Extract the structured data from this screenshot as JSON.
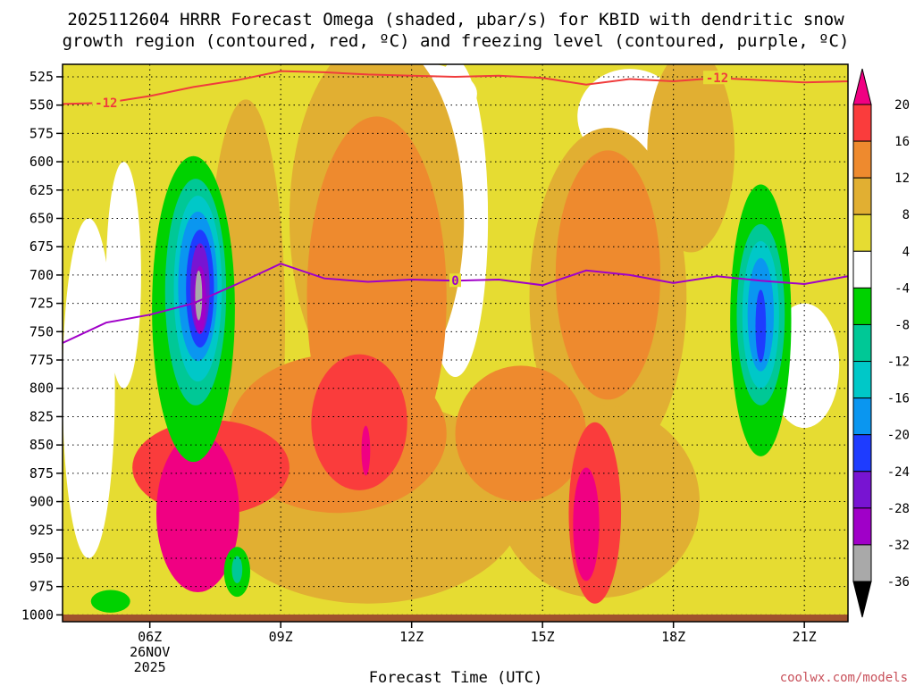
{
  "chart_data": {
    "type": "heatmap",
    "title_line1": "2025112604 HRRR Forecast Omega (shaded, μbar/s) for KBID with dendritic snow",
    "title_line2": "growth region (contoured, red, ºC) and freezing level (contoured, purple, ºC)",
    "xlabel": "Forecast Time (UTC)",
    "x_ticks": [
      {
        "hour": 6,
        "label": "06Z",
        "sub1": "26NOV",
        "sub2": "2025"
      },
      {
        "hour": 9,
        "label": "09Z"
      },
      {
        "hour": 12,
        "label": "12Z"
      },
      {
        "hour": 15,
        "label": "15Z"
      },
      {
        "hour": 18,
        "label": "18Z"
      },
      {
        "hour": 21,
        "label": "21Z"
      }
    ],
    "x_range_hours": [
      4,
      22
    ],
    "y_ticks": [
      525,
      550,
      575,
      600,
      625,
      650,
      675,
      700,
      725,
      750,
      775,
      800,
      825,
      850,
      875,
      900,
      925,
      950,
      975,
      1000
    ],
    "y_range_hpa": [
      514,
      1006
    ],
    "colorbar": {
      "bins": [
        {
          "color": "#000000",
          "from": -40,
          "to": -36
        },
        {
          "color": "#a9a9a9",
          "from": -36,
          "to": -32
        },
        {
          "color": "#a000c8",
          "from": -32,
          "to": -28
        },
        {
          "color": "#7814d2",
          "from": -28,
          "to": -24
        },
        {
          "color": "#1e3cff",
          "from": -24,
          "to": -20
        },
        {
          "color": "#0a96f0",
          "from": -20,
          "to": -16
        },
        {
          "color": "#00c8c8",
          "from": -16,
          "to": -12
        },
        {
          "color": "#00c896",
          "from": -12,
          "to": -8
        },
        {
          "color": "#00d200",
          "from": -8,
          "to": -4
        },
        {
          "color": "#ffffff",
          "from": -4,
          "to": 4
        },
        {
          "color": "#e6dc32",
          "from": 4,
          "to": 8
        },
        {
          "color": "#e1af32",
          "from": 8,
          "to": 12
        },
        {
          "color": "#ee8a2e",
          "from": 12,
          "to": 16
        },
        {
          "color": "#fa3c3c",
          "from": 16,
          "to": 20
        },
        {
          "color": "#f00082",
          "from": 20,
          "to": 24
        }
      ],
      "labels": [
        "20",
        "16",
        "12",
        "8",
        "4",
        "-4",
        "-8",
        "-12",
        "-16",
        "-20",
        "-24",
        "-28",
        "-32",
        "-36"
      ]
    },
    "omega_regions": [
      {
        "level": 8,
        "cx": 8.2,
        "cy": 745,
        "rx": 0.9,
        "ry": 200
      },
      {
        "level": 8,
        "cx": 11.2,
        "cy": 650,
        "rx": 2.0,
        "ry": 160
      },
      {
        "level": 8,
        "cx": 16.5,
        "cy": 720,
        "rx": 1.8,
        "ry": 150
      },
      {
        "level": 8,
        "cx": 11.0,
        "cy": 900,
        "rx": 3.6,
        "ry": 90
      },
      {
        "level": 8,
        "cx": 16.3,
        "cy": 900,
        "rx": 2.3,
        "ry": 85
      },
      {
        "level": 8,
        "cx": 18.4,
        "cy": 590,
        "rx": 1.0,
        "ry": 90
      },
      {
        "level": 12,
        "cx": 11.2,
        "cy": 720,
        "rx": 1.6,
        "ry": 160
      },
      {
        "level": 12,
        "cx": 16.5,
        "cy": 700,
        "rx": 1.2,
        "ry": 110
      },
      {
        "level": 12,
        "cx": 10.3,
        "cy": 840,
        "rx": 2.5,
        "ry": 70
      },
      {
        "level": 12,
        "cx": 14.5,
        "cy": 840,
        "rx": 1.5,
        "ry": 60
      },
      {
        "level": 16,
        "cx": 10.8,
        "cy": 830,
        "rx": 1.1,
        "ry": 60
      },
      {
        "level": 16,
        "cx": 16.2,
        "cy": 910,
        "rx": 0.6,
        "ry": 80
      },
      {
        "level": 16,
        "cx": 7.4,
        "cy": 870,
        "rx": 1.8,
        "ry": 42
      },
      {
        "level": 20,
        "cx": 7.1,
        "cy": 910,
        "rx": 0.95,
        "ry": 70
      },
      {
        "level": 20,
        "cx": 16.0,
        "cy": 920,
        "rx": 0.3,
        "ry": 50
      },
      {
        "level": 20,
        "cx": 10.95,
        "cy": 855,
        "rx": 0.1,
        "ry": 22
      },
      {
        "level": -8,
        "cx": 7.0,
        "cy": 730,
        "rx": 0.95,
        "ry": 135
      },
      {
        "level": -12,
        "cx": 7.05,
        "cy": 715,
        "rx": 0.7,
        "ry": 100
      },
      {
        "level": -16,
        "cx": 7.1,
        "cy": 712,
        "rx": 0.55,
        "ry": 82
      },
      {
        "level": -20,
        "cx": 7.1,
        "cy": 710,
        "rx": 0.45,
        "ry": 66
      },
      {
        "level": -24,
        "cx": 7.15,
        "cy": 712,
        "rx": 0.32,
        "ry": 52
      },
      {
        "level": -28,
        "cx": 7.15,
        "cy": 712,
        "rx": 0.22,
        "ry": 40
      },
      {
        "level": -32,
        "cx": 7.15,
        "cy": 722,
        "rx": 0.14,
        "ry": 30
      },
      {
        "level": -36,
        "cx": 7.12,
        "cy": 718,
        "rx": 0.08,
        "ry": 22
      },
      {
        "level": -8,
        "cx": 20.0,
        "cy": 740,
        "rx": 0.7,
        "ry": 120
      },
      {
        "level": -12,
        "cx": 20.0,
        "cy": 735,
        "rx": 0.55,
        "ry": 80
      },
      {
        "level": -16,
        "cx": 20.0,
        "cy": 735,
        "rx": 0.42,
        "ry": 65
      },
      {
        "level": -20,
        "cx": 20.0,
        "cy": 735,
        "rx": 0.3,
        "ry": 50
      },
      {
        "level": -24,
        "cx": 20.0,
        "cy": 745,
        "rx": 0.12,
        "ry": 32
      },
      {
        "level": -8,
        "cx": 5.1,
        "cy": 988,
        "rx": 0.45,
        "ry": 10
      },
      {
        "level": -8,
        "cx": 8.0,
        "cy": 962,
        "rx": 0.3,
        "ry": 22
      },
      {
        "level": -12,
        "cx": 8.0,
        "cy": 960,
        "rx": 0.12,
        "ry": 12
      }
    ],
    "white_regions": [
      {
        "cx": 13.0,
        "cy": 650,
        "rx": 0.75,
        "ry": 140
      },
      {
        "cx": 12.8,
        "cy": 620,
        "rx": 0.6,
        "ry": 90
      },
      {
        "cx": 17.0,
        "cy": 560,
        "rx": 1.2,
        "ry": 42
      },
      {
        "cx": 12.0,
        "cy": 540,
        "rx": 1.5,
        "ry": 28
      },
      {
        "cx": 21.0,
        "cy": 780,
        "rx": 0.8,
        "ry": 55
      },
      {
        "cx": 4.6,
        "cy": 800,
        "rx": 0.6,
        "ry": 150
      },
      {
        "cx": 5.4,
        "cy": 700,
        "rx": 0.4,
        "ry": 100
      }
    ],
    "dgz_contour": {
      "label": "-12",
      "color": "#f03c3c",
      "points": [
        [
          4,
          549
        ],
        [
          5,
          548
        ],
        [
          6,
          542
        ],
        [
          7,
          534
        ],
        [
          8,
          528
        ],
        [
          9,
          520
        ],
        [
          10,
          521
        ],
        [
          11,
          523
        ],
        [
          12,
          524
        ],
        [
          13,
          525
        ],
        [
          14,
          524
        ],
        [
          15,
          526
        ],
        [
          16,
          532
        ],
        [
          17,
          527
        ],
        [
          18,
          529
        ],
        [
          19,
          526
        ],
        [
          20,
          528
        ],
        [
          21,
          530
        ],
        [
          22,
          529
        ]
      ],
      "label_positions": [
        [
          5.0,
          548
        ],
        [
          19.0,
          526
        ]
      ]
    },
    "freezing_level": {
      "label": "0",
      "color": "#a000c8",
      "points": [
        [
          4,
          760
        ],
        [
          5,
          742
        ],
        [
          6,
          735
        ],
        [
          7,
          725
        ],
        [
          8,
          708
        ],
        [
          9,
          690
        ],
        [
          10,
          703
        ],
        [
          11,
          706
        ],
        [
          12,
          704
        ],
        [
          13,
          705
        ],
        [
          14,
          704
        ],
        [
          15,
          709
        ],
        [
          16,
          696
        ],
        [
          17,
          700
        ],
        [
          18,
          707
        ],
        [
          19,
          701
        ],
        [
          20,
          705
        ],
        [
          21,
          708
        ],
        [
          22,
          701
        ]
      ],
      "label_positions": [
        [
          13.0,
          705
        ]
      ]
    },
    "ground_color": "#a0522d"
  },
  "credit": "coolwx.com/models"
}
